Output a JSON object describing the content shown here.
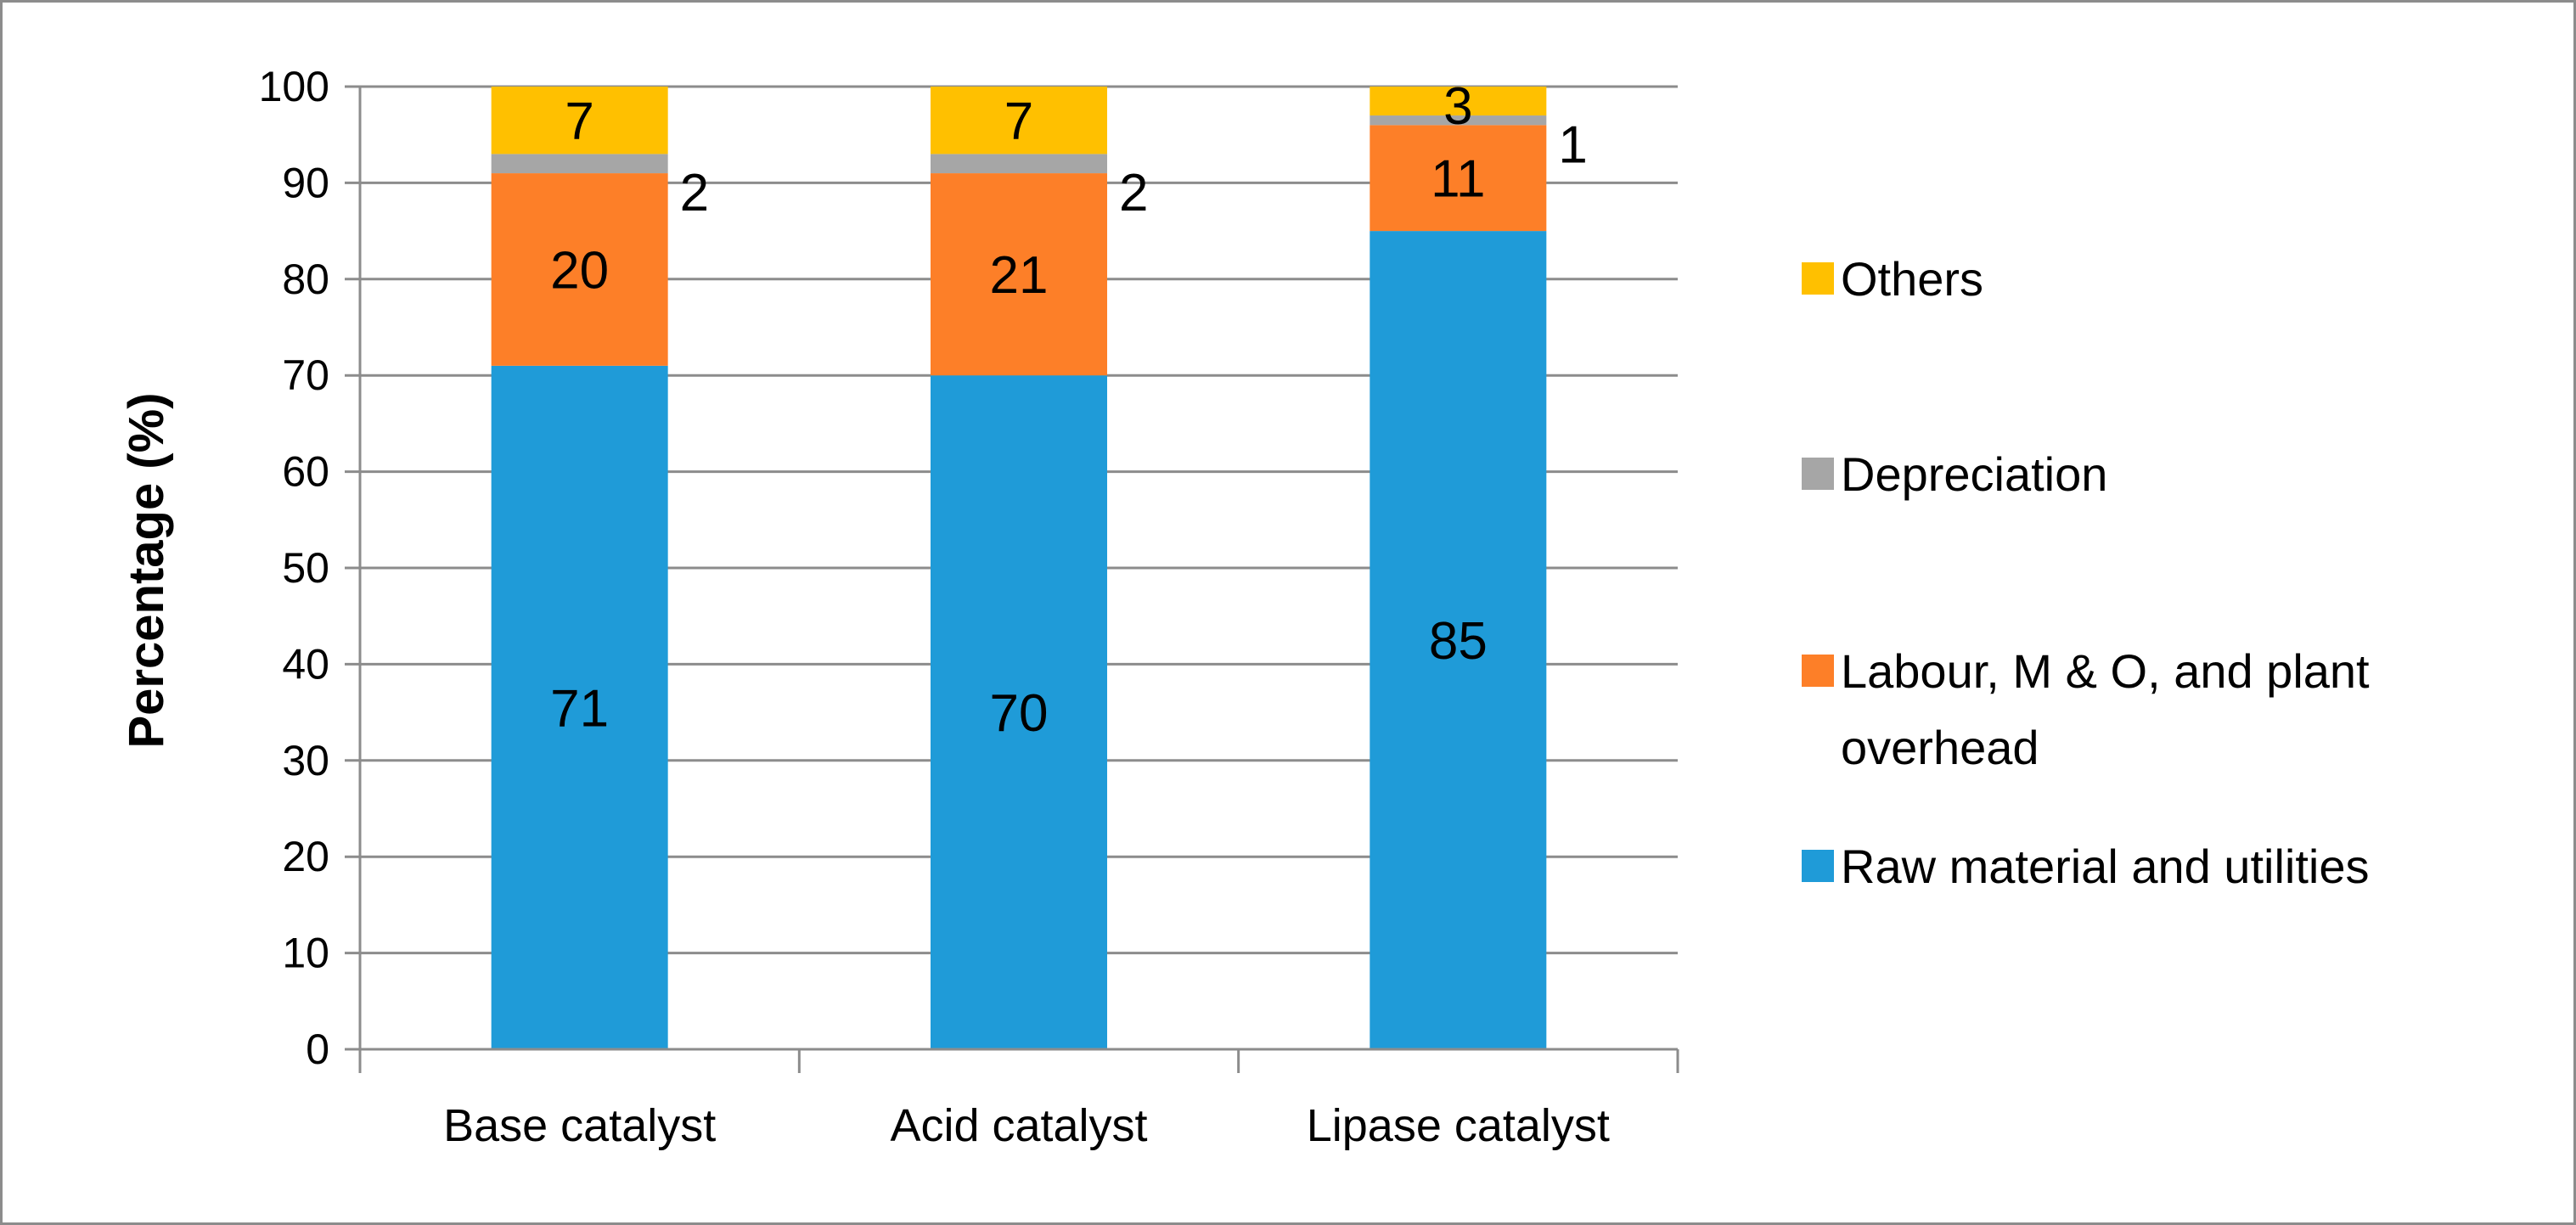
{
  "chart_data": {
    "type": "bar",
    "stacked": true,
    "categories": [
      "Base catalyst",
      "Acid catalyst",
      "Lipase catalyst"
    ],
    "series": [
      {
        "name": "Raw material and utilities",
        "values": [
          71,
          70,
          85
        ],
        "labels": [
          "71",
          "70",
          "85"
        ],
        "color": "#1f9bd8"
      },
      {
        "name": "Labour, M & O, and plant overhead",
        "values": [
          20,
          21,
          11
        ],
        "labels": [
          "20",
          "21",
          "11"
        ],
        "color": "#fd7f28"
      },
      {
        "name": "Depreciation",
        "values": [
          2,
          2,
          1
        ],
        "labels": [
          "2",
          "2",
          "1"
        ],
        "color": "#a6a6a6"
      },
      {
        "name": "Others",
        "values": [
          7,
          7,
          3
        ],
        "labels": [
          "7",
          "7",
          "3"
        ],
        "color": "#ffc000"
      }
    ],
    "title": "",
    "xlabel": "",
    "ylabel": "Percentage (%)",
    "ylim": [
      0,
      100
    ],
    "yticks": [
      0,
      10,
      20,
      30,
      40,
      50,
      60,
      70,
      80,
      90,
      100
    ],
    "grid": true,
    "legend": "right",
    "legend_order": [
      "Others",
      "Depreciation",
      "Labour, M & O, and plant overhead",
      "Raw material and utilities"
    ]
  }
}
